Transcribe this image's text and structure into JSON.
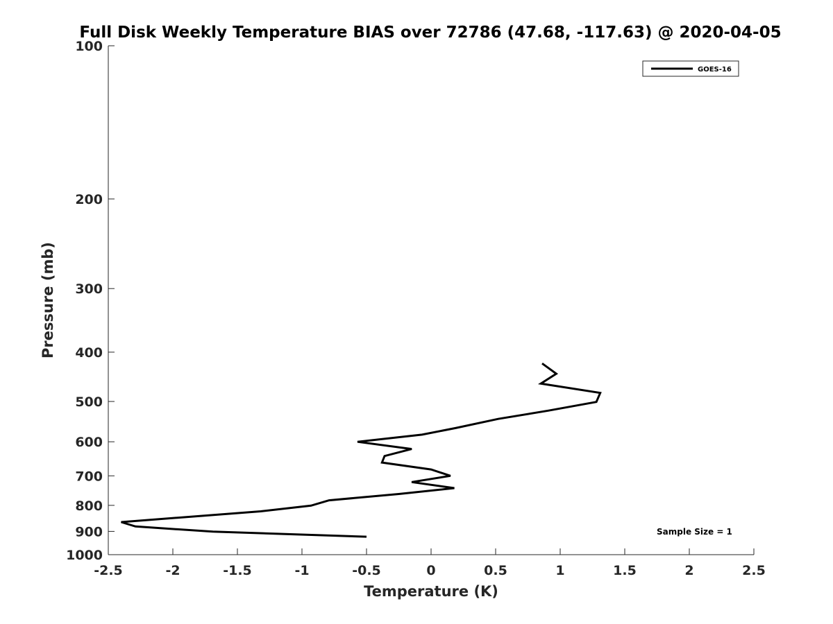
{
  "chart_data": {
    "type": "line",
    "title": "Full Disk Weekly Temperature BIAS over 72786 (47.68, -117.63) @ 2020-04-05",
    "xlabel": "Temperature (K)",
    "ylabel": "Pressure (mb)",
    "xlim": [
      -2.5,
      2.5
    ],
    "ylim": [
      100,
      1000
    ],
    "y_scale": "log",
    "y_reversed": true,
    "x_ticks": [
      -2.5,
      -2,
      -1.5,
      -1,
      -0.5,
      0,
      0.5,
      1,
      1.5,
      2,
      2.5
    ],
    "x_tick_labels": [
      "-2.5",
      "-2",
      "-1.5",
      "-1",
      "-0.5",
      "0",
      "0.5",
      "1",
      "1.5",
      "2",
      "2.5"
    ],
    "y_ticks": [
      100,
      200,
      300,
      400,
      500,
      600,
      700,
      800,
      900,
      1000
    ],
    "y_tick_labels": [
      "100",
      "200",
      "300",
      "400",
      "500",
      "600",
      "700",
      "800",
      "900",
      "1000"
    ],
    "grid": false,
    "legend_position": "top-right",
    "series": [
      {
        "name": "GOES-16",
        "color": "#000000",
        "points": [
          {
            "x": 0.86,
            "y": 421
          },
          {
            "x": 0.97,
            "y": 441
          },
          {
            "x": 0.85,
            "y": 461
          },
          {
            "x": 1.31,
            "y": 481
          },
          {
            "x": 1.28,
            "y": 501
          },
          {
            "x": 0.91,
            "y": 521
          },
          {
            "x": 0.52,
            "y": 541
          },
          {
            "x": 0.19,
            "y": 564
          },
          {
            "x": -0.07,
            "y": 581
          },
          {
            "x": -0.57,
            "y": 600
          },
          {
            "x": -0.15,
            "y": 620
          },
          {
            "x": -0.36,
            "y": 640
          },
          {
            "x": -0.38,
            "y": 659
          },
          {
            "x": 0.0,
            "y": 680
          },
          {
            "x": 0.15,
            "y": 700
          },
          {
            "x": -0.15,
            "y": 720
          },
          {
            "x": 0.18,
            "y": 740
          },
          {
            "x": -0.25,
            "y": 760
          },
          {
            "x": -0.79,
            "y": 782
          },
          {
            "x": -0.93,
            "y": 801
          },
          {
            "x": -1.32,
            "y": 822
          },
          {
            "x": -2.4,
            "y": 863
          },
          {
            "x": -2.29,
            "y": 880
          },
          {
            "x": -1.69,
            "y": 901
          },
          {
            "x": -0.5,
            "y": 922
          }
        ]
      }
    ],
    "annotations": [
      {
        "text": "Sample Size = 1"
      }
    ]
  }
}
